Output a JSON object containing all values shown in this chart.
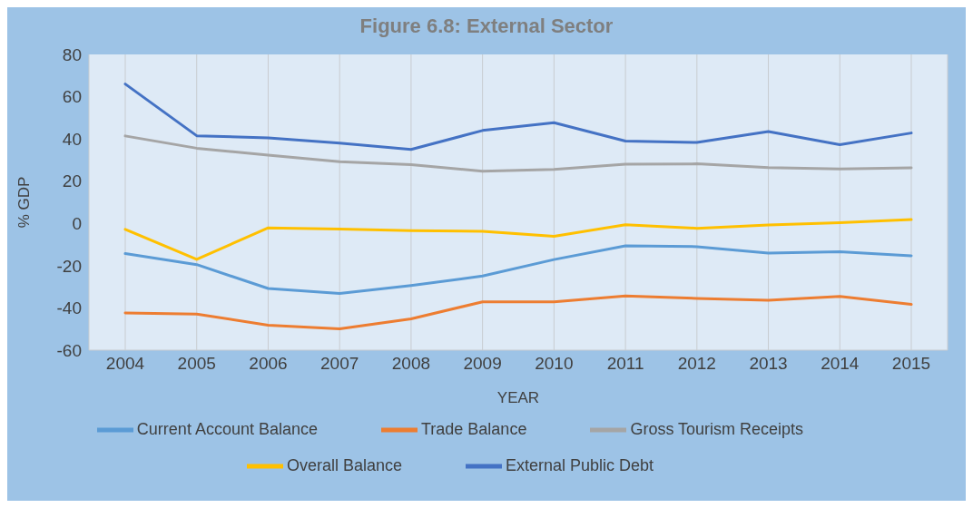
{
  "chart_data": {
    "type": "line",
    "title": "Figure 6.8: External Sector",
    "xlabel": "YEAR",
    "ylabel": "% GDP",
    "categories": [
      "2004",
      "2005",
      "2006",
      "2007",
      "2008",
      "2009",
      "2010",
      "2011",
      "2012",
      "2013",
      "2014",
      "2015"
    ],
    "series": [
      {
        "name": "Current Account Balance",
        "color": "#5b9bd5",
        "values": [
          -14.3,
          -19.5,
          -30.8,
          -33.2,
          -29.4,
          -24.9,
          -17.1,
          -10.6,
          -11,
          -14,
          -13.4,
          -15.3
        ]
      },
      {
        "name": "Trade Balance",
        "color": "#ed7d31",
        "values": [
          -42.4,
          -42.9,
          -48.2,
          -49.9,
          -45.2,
          -37.1,
          -37.1,
          -34.3,
          -35.5,
          -36.4,
          -34.6,
          -38.3
        ]
      },
      {
        "name": "Gross Tourism Receipts",
        "color": "#a5a5a5",
        "values": [
          41.4,
          35.6,
          32.3,
          29.2,
          27.8,
          24.7,
          25.6,
          28,
          28.2,
          26.4,
          25.8,
          26.3
        ]
      },
      {
        "name": "Overall Balance",
        "color": "#ffc000",
        "values": [
          -2.8,
          -17,
          -2.1,
          -2.7,
          -3.4,
          -3.7,
          -6.1,
          -0.6,
          -2.3,
          -0.7,
          0.3,
          1.8
        ]
      },
      {
        "name": "External Public Debt",
        "color": "#4472c4",
        "values": [
          66,
          41.5,
          40.5,
          38,
          35,
          44,
          47.7,
          39,
          38.3,
          43.5,
          37.3,
          42.8
        ]
      }
    ],
    "ylim": [
      -60,
      80
    ],
    "yticks": [
      -60,
      -40,
      -20,
      0,
      20,
      40,
      60,
      80
    ],
    "grid": "x",
    "legend": "bottom",
    "marker": "none",
    "line_style": "solid"
  }
}
